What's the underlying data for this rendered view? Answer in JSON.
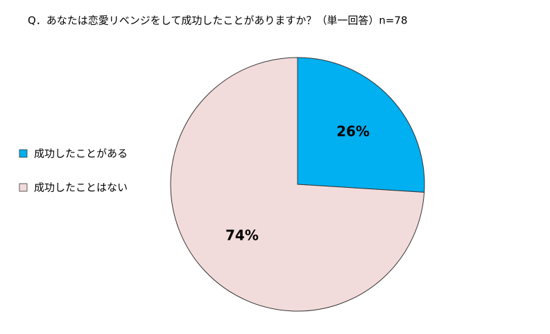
{
  "chart_data": {
    "type": "pie",
    "title": "Q．あなたは恋愛リベンジをして成功したことがありますか？（単一回答）n=78",
    "categories": [
      "成功したことがある",
      "成功したことはない"
    ],
    "values": [
      26,
      74
    ],
    "value_labels": [
      "26%",
      "74%"
    ],
    "colors": [
      "#00b0f0",
      "#f2dcdb"
    ],
    "legend": "left"
  }
}
